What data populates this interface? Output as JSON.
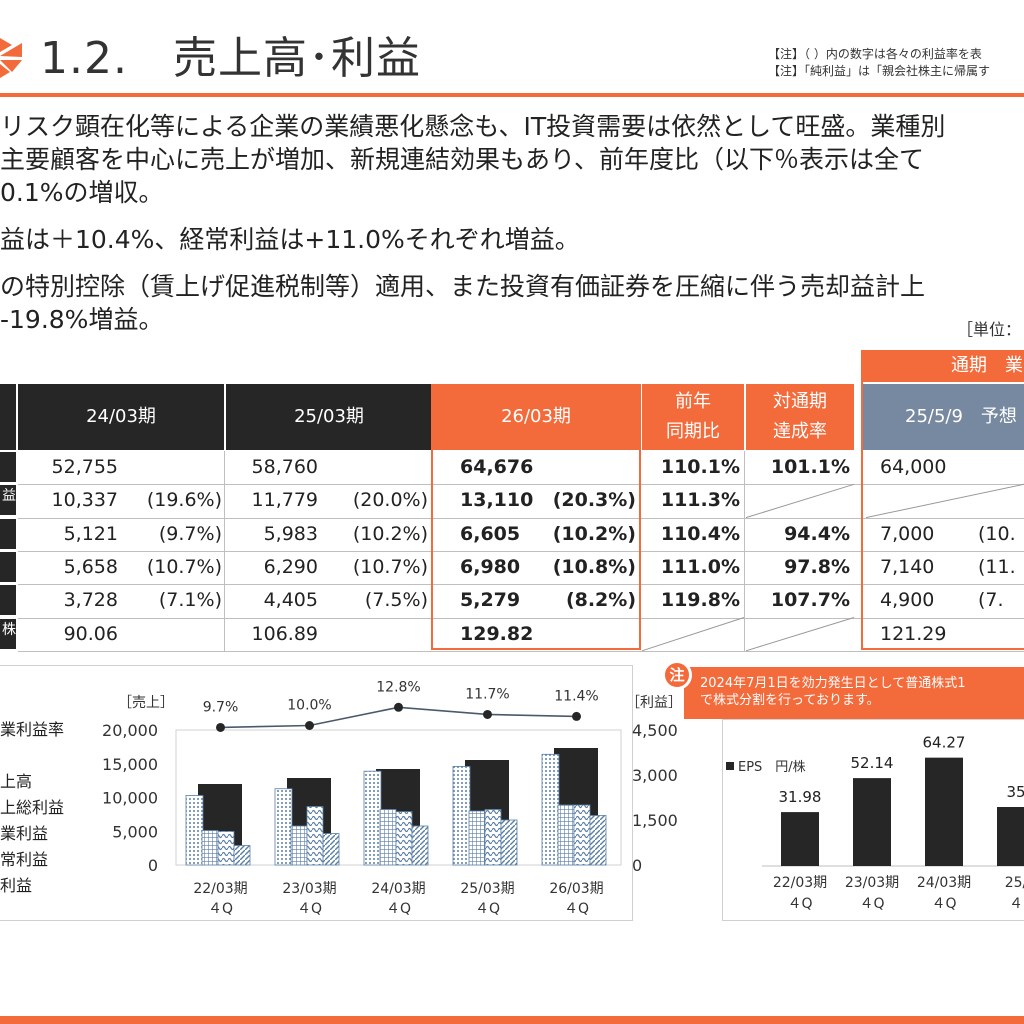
{
  "page": {
    "title": "1.2.　売上高･利益",
    "notes": [
      "【注】（ ）内の数字は各々の利益率を表",
      "【注】「純利益」は「親会社株主に帰属す"
    ],
    "body_lines": [
      "リスク顕在化等による企業の業績悪化懸念も、IT投資需要は依然として旺盛。業種別",
      "主要顧客を中心に売上が増加、新規連結効果もあり、前年度比（以下％表示は全て",
      "0.1%の増収。",
      "益は＋10.4%、経常利益は+11.0%それぞれ増益。",
      "の特別控除（賃上げ促進税制等）適用、また投資有価証券を圧縮に伴う売却益計上",
      "-19.8%増益。"
    ],
    "unit_label": "［単位："
  },
  "table": {
    "forecast_header": "通期　業",
    "headers": {
      "fy24": "24/03期",
      "fy25": "25/03期",
      "fy26": "26/03期",
      "yoy": [
        "前年",
        "同期比"
      ],
      "achieve": [
        "対通期",
        "達成率"
      ],
      "forecast": "25/5/9　予想"
    },
    "row_label_fragments": [
      "",
      "益",
      "",
      "",
      "",
      "株"
    ],
    "rows": [
      {
        "fy24": "52,755",
        "fy24_pct": "",
        "fy25": "58,760",
        "fy25_pct": "",
        "fy26": "64,676",
        "fy26_pct": "",
        "yoy": "110.1%",
        "achieve": "101.1%",
        "forecast": "64,000",
        "forecast_pct": ""
      },
      {
        "fy24": "10,337",
        "fy24_pct": "(19.6%)",
        "fy25": "11,779",
        "fy25_pct": "(20.0%)",
        "fy26": "13,110",
        "fy26_pct": "(20.3%)",
        "yoy": "111.3%",
        "achieve": "",
        "forecast": "",
        "forecast_pct": ""
      },
      {
        "fy24": "5,121",
        "fy24_pct": "(9.7%)",
        "fy25": "5,983",
        "fy25_pct": "(10.2%)",
        "fy26": "6,605",
        "fy26_pct": "(10.2%)",
        "yoy": "110.4%",
        "achieve": "94.4%",
        "forecast": "7,000",
        "forecast_pct": "(10."
      },
      {
        "fy24": "5,658",
        "fy24_pct": "(10.7%)",
        "fy25": "6,290",
        "fy25_pct": "(10.7%)",
        "fy26": "6,980",
        "fy26_pct": "(10.8%)",
        "yoy": "111.0%",
        "achieve": "97.8%",
        "forecast": "7,140",
        "forecast_pct": "(11."
      },
      {
        "fy24": "3,728",
        "fy24_pct": "(7.1%)",
        "fy25": "4,405",
        "fy25_pct": "(7.5%)",
        "fy26": "5,279",
        "fy26_pct": "(8.2%)",
        "yoy": "119.8%",
        "achieve": "107.7%",
        "forecast": "4,900",
        "forecast_pct": "(7."
      },
      {
        "fy24": "90.06",
        "fy24_pct": "",
        "fy25": "106.89",
        "fy25_pct": "",
        "fy26": "129.82",
        "fy26_pct": "",
        "yoy": "",
        "achieve": "",
        "forecast": "121.29",
        "forecast_pct": ""
      }
    ]
  },
  "note": {
    "badge": "注",
    "lines": [
      "2024年7月1日を効力発生日として普通株式1",
      "で株式分割を行っております。"
    ]
  },
  "chart_data": [
    {
      "type": "bar",
      "left_axis_label": "［売上］",
      "right_axis_label": "［利益］",
      "left_ticks": [
        "20,000",
        "15,000",
        "10,000",
        "5,000",
        "0"
      ],
      "right_ticks": [
        "4,500",
        "3,000",
        "1,500",
        "0"
      ],
      "ylim_left": [
        0,
        20000
      ],
      "ylim_right": [
        0,
        4500
      ],
      "categories": [
        [
          "22/03期",
          "４Q"
        ],
        [
          "23/03期",
          "４Q"
        ],
        [
          "24/03期",
          "４Q"
        ],
        [
          "25/03期",
          "４Q"
        ],
        [
          "26/03期",
          "４Q"
        ]
      ],
      "legend": [
        "業利益率",
        "上高",
        "上総利益",
        "業利益",
        "常利益",
        "利益"
      ],
      "margin_labels": [
        "9.7%",
        "10.0%",
        "12.8%",
        "11.7%",
        "11.4%"
      ],
      "series": [
        {
          "name": "業利益率",
          "axis": "line",
          "values": [
            9.7,
            10.0,
            12.8,
            11.7,
            11.4
          ]
        },
        {
          "name": "上高",
          "axis": "left",
          "values": [
            10300,
            11300,
            13900,
            14600,
            16400
          ]
        },
        {
          "name": "上総利益",
          "axis": "right",
          "values": [
            2700,
            2900,
            3200,
            3500,
            3900
          ]
        },
        {
          "name": "業利益",
          "axis": "right",
          "values": [
            1150,
            1300,
            1850,
            1800,
            2000
          ]
        },
        {
          "name": "常利益",
          "axis": "right",
          "values": [
            1120,
            1950,
            1780,
            1850,
            2000
          ]
        },
        {
          "name": "利益",
          "axis": "right",
          "values": [
            650,
            1050,
            1300,
            1500,
            1650
          ]
        }
      ],
      "colors": {
        "line": "#4a5a6a",
        "dark": "#262626",
        "pattern": "#5b7fa6"
      }
    },
    {
      "type": "bar",
      "legend": "EPS　円/株",
      "categories": [
        [
          "22/03期",
          "４Q"
        ],
        [
          "23/03期",
          "４Q"
        ],
        [
          "24/03期",
          "４Q"
        ],
        [
          "25/",
          "４"
        ]
      ],
      "value_labels": [
        "31.98",
        "52.14",
        "64.27",
        "35"
      ],
      "values": [
        31.98,
        52.14,
        64.27,
        35
      ],
      "ylim": [
        0,
        70
      ],
      "color": "#262626"
    }
  ]
}
